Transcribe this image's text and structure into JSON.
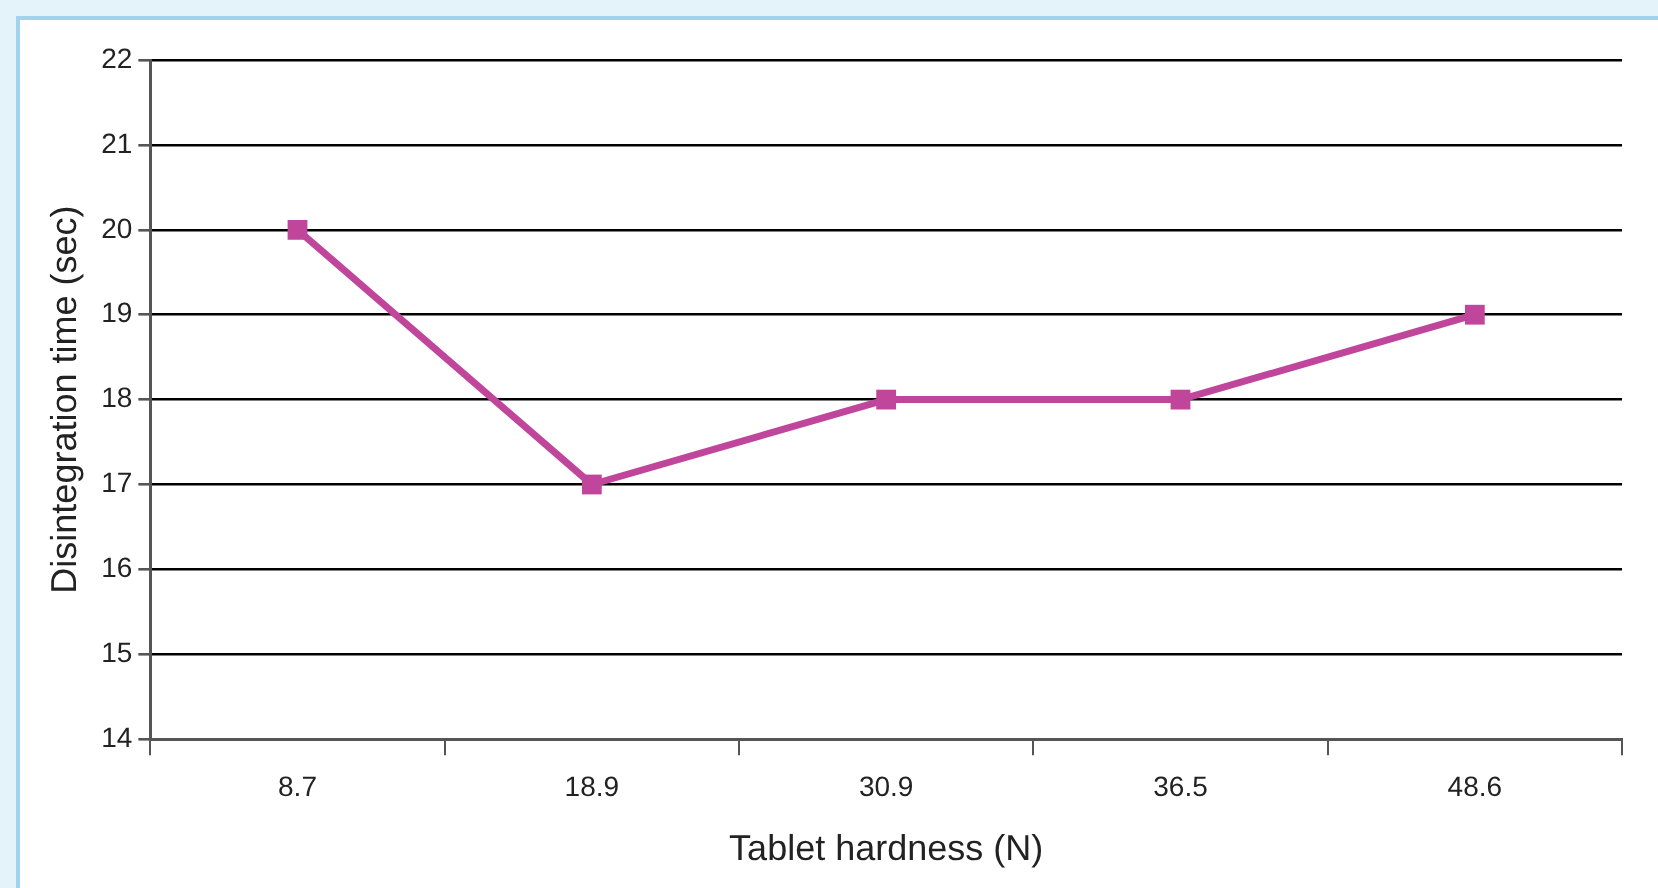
{
  "chart_data": {
    "type": "line",
    "xlabel": "Tablet hardness (N)",
    "ylabel": "Disintegration time (sec)",
    "categories": [
      "8.7",
      "18.9",
      "30.9",
      "36.5",
      "48.6"
    ],
    "series": [
      {
        "color": "#c0469c",
        "values": [
          20,
          17,
          18,
          18,
          19
        ]
      }
    ],
    "ylim": [
      14,
      22
    ],
    "yticks": [
      14,
      15,
      16,
      17,
      18,
      19,
      20,
      21,
      22
    ],
    "grid": "y",
    "legend": false,
    "marker": "square",
    "line_style": "solid"
  }
}
